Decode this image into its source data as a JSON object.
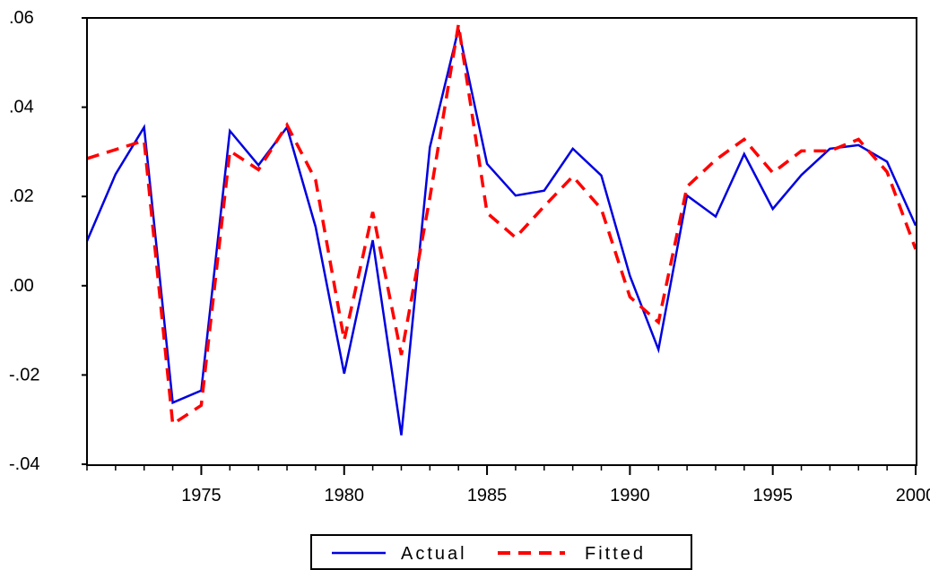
{
  "chart_data": {
    "type": "line",
    "title": "",
    "xlabel": "",
    "ylabel": "",
    "x": [
      1971,
      1972,
      1973,
      1974,
      1975,
      1976,
      1977,
      1978,
      1979,
      1980,
      1981,
      1982,
      1983,
      1984,
      1985,
      1986,
      1987,
      1988,
      1989,
      1990,
      1991,
      1992,
      1993,
      1994,
      1995,
      1996,
      1997,
      1998,
      1999,
      2000
    ],
    "xlim": [
      1971,
      2000
    ],
    "ylim": [
      -0.04,
      0.06
    ],
    "x_ticks": [
      {
        "value": 1975,
        "label": "1975"
      },
      {
        "value": 1980,
        "label": "1980"
      },
      {
        "value": 1985,
        "label": "1985"
      },
      {
        "value": 1990,
        "label": "1990"
      },
      {
        "value": 1995,
        "label": "1995"
      },
      {
        "value": 2000,
        "label": "2000"
      }
    ],
    "y_ticks": [
      {
        "value": 0.06,
        "label": ".06"
      },
      {
        "value": 0.04,
        "label": ".04"
      },
      {
        "value": 0.02,
        "label": ".02"
      },
      {
        "value": 0.0,
        "label": ".00"
      },
      {
        "value": -0.02,
        "label": "-.02"
      },
      {
        "value": -0.04,
        "label": "-.04"
      }
    ],
    "series": [
      {
        "name": "Actual",
        "color": "#0000e0",
        "style": "solid",
        "values": [
          0.01,
          0.025,
          0.0355,
          -0.0262,
          -0.0235,
          0.0347,
          0.027,
          0.0355,
          0.0132,
          -0.0197,
          0.0102,
          -0.0335,
          0.031,
          0.0575,
          0.0273,
          0.0202,
          0.0213,
          0.0307,
          0.0247,
          0.0022,
          -0.0143,
          0.0202,
          0.0155,
          0.0295,
          0.0172,
          0.0248,
          0.0307,
          0.0315,
          0.0278,
          0.0135
        ]
      },
      {
        "name": "Fitted",
        "color": "#ff0000",
        "style": "dashed",
        "values": [
          0.0285,
          0.0305,
          0.0325,
          -0.031,
          -0.0268,
          0.0302,
          0.026,
          0.036,
          0.0237,
          -0.0122,
          0.0165,
          -0.0155,
          0.0197,
          0.0585,
          0.0163,
          0.0108,
          0.0178,
          0.0245,
          0.0172,
          -0.0025,
          -0.0082,
          0.0222,
          0.0282,
          0.0328,
          0.0253,
          0.0302,
          0.0302,
          0.0328,
          0.0255,
          0.0082
        ]
      }
    ],
    "grid": false,
    "legend": {
      "position": "bottom-center",
      "entries": [
        "Actual",
        "Fitted"
      ]
    }
  }
}
